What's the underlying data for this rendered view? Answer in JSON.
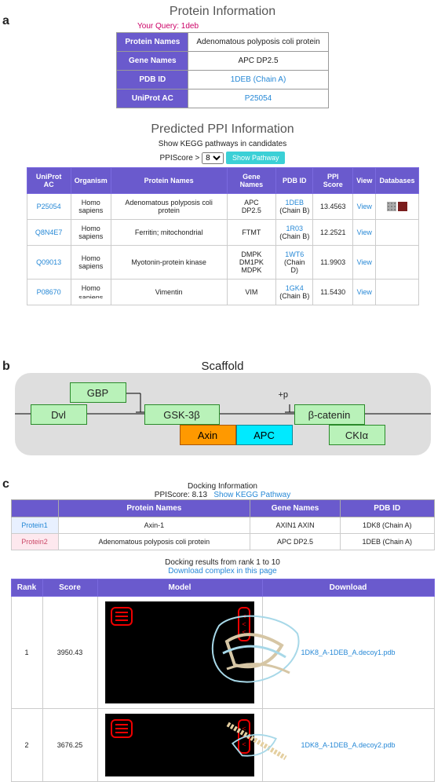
{
  "panels": {
    "a": "a",
    "b": "b",
    "c": "c"
  },
  "protein_info": {
    "title": "Protein Information",
    "query_label": "Your Query: 1deb",
    "rows": [
      {
        "label": "Protein Names",
        "value": "Adenomatous polyposis coli protein",
        "isLink": false
      },
      {
        "label": "Gene Names",
        "value": "APC DP2.5",
        "isLink": false
      },
      {
        "label": "PDB ID",
        "value": "1DEB (Chain A)",
        "isLink": true
      },
      {
        "label": "UniProt AC",
        "value": "P25054",
        "isLink": true
      }
    ],
    "header_bg": "#6a5acd"
  },
  "ppi": {
    "title": "Predicted PPI Information",
    "subtitle": "Show KEGG pathways in candidates",
    "score_label": "PPIScore  >",
    "score_value": "8",
    "button": "Show Pathway",
    "columns": [
      "UniProt AC",
      "Organism",
      "Protein Names",
      "Gene Names",
      "PDB ID",
      "PPI Score",
      "View",
      "Databases"
    ],
    "rows": [
      {
        "uniprot": "P25054",
        "org": "Homo sapiens",
        "pname": "Adenomatous polyposis coli protein",
        "gname": "APC DP2.5",
        "pdb": "1DEB",
        "chain": "(Chain B)",
        "score": "13.4563",
        "view": "View",
        "db": true
      },
      {
        "uniprot": "Q8N4E7",
        "org": "Homo sapiens",
        "pname": "Ferritin; mitochondrial",
        "gname": "FTMT",
        "pdb": "1R03",
        "chain": "(Chain B)",
        "score": "12.2521",
        "view": "View",
        "db": false
      },
      {
        "uniprot": "Q09013",
        "org": "Homo sapiens",
        "pname": "Myotonin-protein kinase",
        "gname": "DMPK DM1PK MDPK",
        "pdb": "1WT6",
        "chain": "(Chain D)",
        "score": "11.9903",
        "view": "View",
        "db": false
      },
      {
        "uniprot": "P08670",
        "org": "Homo sapiens",
        "pname": "Vimentin",
        "gname": "VIM",
        "pdb": "1GK4",
        "chain": "(Chain B)",
        "score": "11.5430",
        "view": "View",
        "db": false
      }
    ]
  },
  "scaffold": {
    "title": "Scaffold",
    "plusP": "+p",
    "boxes": {
      "Dvl": "Dvl",
      "GBP": "GBP",
      "GSK": "GSK-3β",
      "Axin": "Axin",
      "APC": "APC",
      "bcat": "β-catenin",
      "CKI": "CKIα"
    },
    "colors": {
      "green": "#b9f2b9",
      "orange": "#ff9900",
      "cyan": "#00eaff",
      "bg": "#dedede"
    }
  },
  "docking": {
    "header": "Docking Information",
    "ppi_label": "PPIScore: 8.13",
    "kegg_link": "Show KEGG Pathway",
    "cols": [
      "",
      "Protein Names",
      "Gene Names",
      "PDB ID"
    ],
    "proteins": [
      {
        "label": "Protein1",
        "name": "Axin-1",
        "gene": "AXIN1 AXIN",
        "pdb": "1DK8 (Chain A)"
      },
      {
        "label": "Protein2",
        "name": "Adenomatous polyposis coli protein",
        "gene": "APC DP2.5",
        "pdb": "1DEB (Chain A)"
      }
    ],
    "results_label": "Docking results from rank 1 to 10",
    "download_link": "Download complex in this page",
    "result_cols": [
      "Rank",
      "Score",
      "Model",
      "Download"
    ],
    "results": [
      {
        "rank": "1",
        "score": "3950.43",
        "file": "1DK8_A-1DEB_A.decoy1.pdb"
      },
      {
        "rank": "2",
        "score": "3676.25",
        "file": "1DK8_A-1DEB_A.decoy2.pdb"
      }
    ]
  }
}
